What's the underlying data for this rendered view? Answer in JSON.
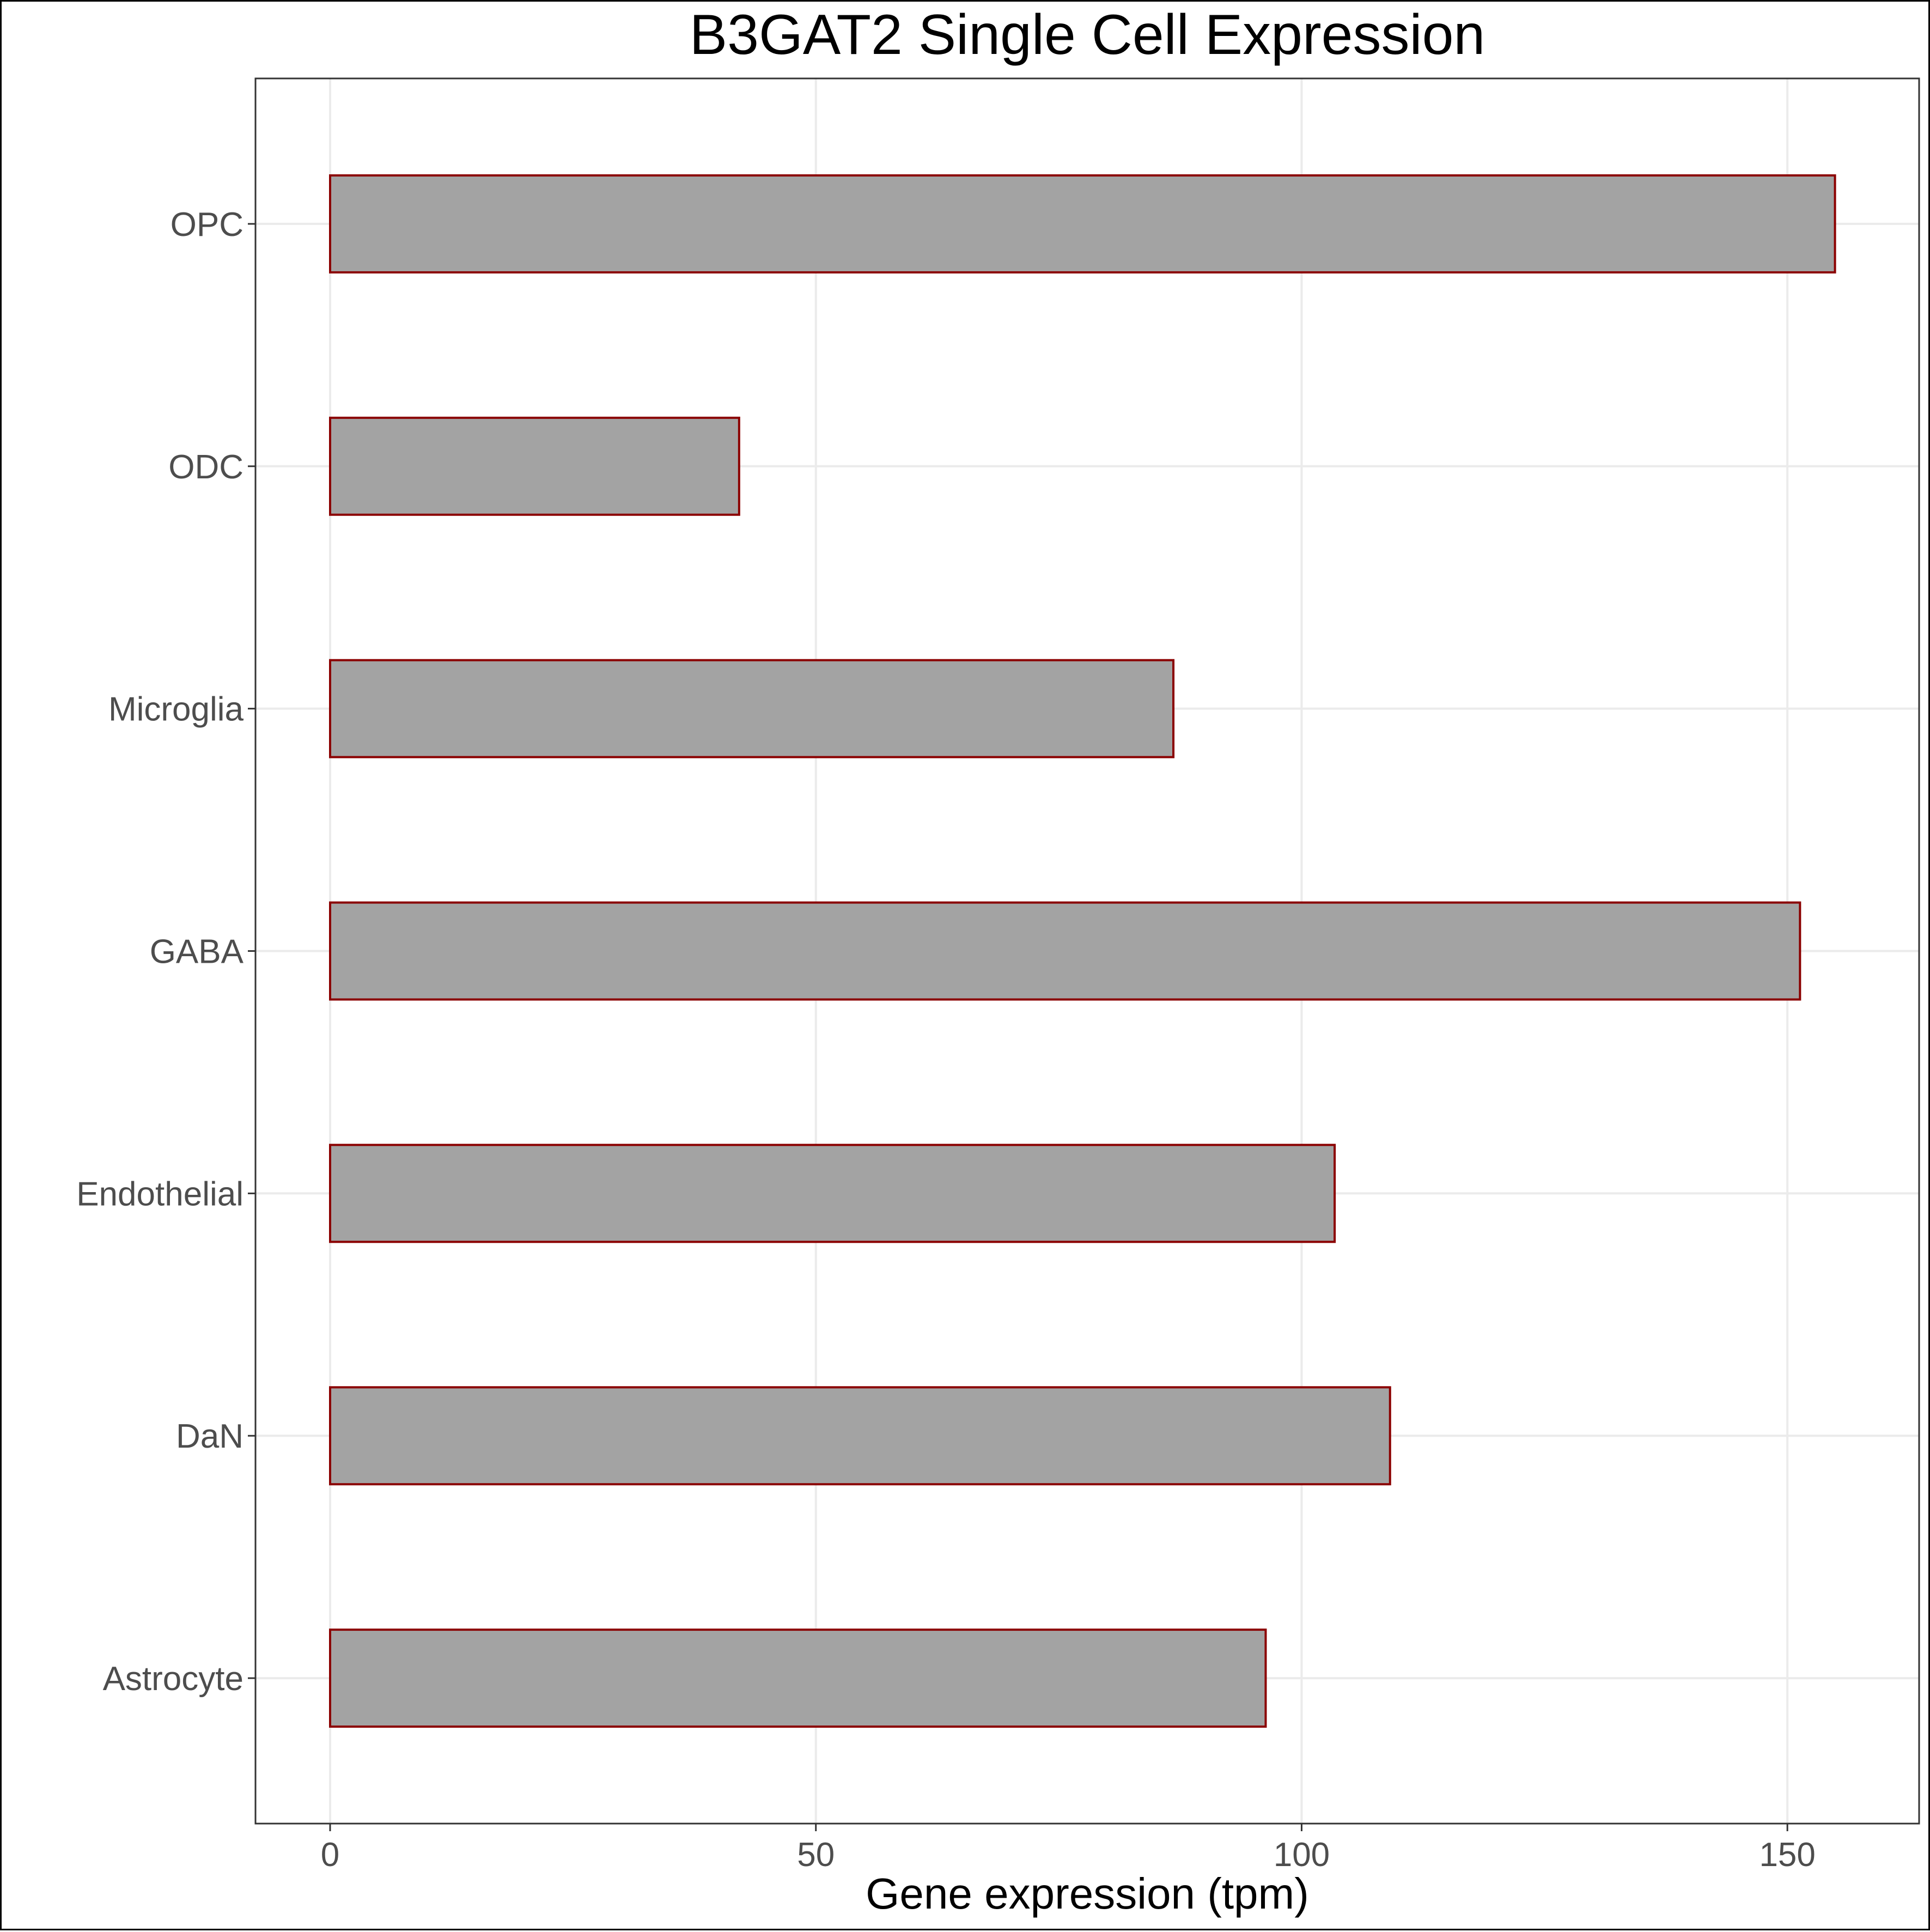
{
  "chart_data": {
    "type": "bar",
    "orientation": "horizontal",
    "title": "B3GAT2 Single Cell Expression",
    "xlabel": "Gene expression (tpm)",
    "ylabel": "",
    "categories": [
      "Astrocyte",
      "DaN",
      "Endothelial",
      "GABA",
      "Microglia",
      "ODC",
      "OPC"
    ],
    "values": [
      96.3,
      109.1,
      103.4,
      151.3,
      86.8,
      42.1,
      154.9
    ],
    "xlim": [
      -7.7,
      162.6
    ],
    "xticks": [
      0,
      50,
      100,
      150
    ],
    "xtick_labels": [
      "0",
      "50",
      "100",
      "150"
    ],
    "grid": true,
    "legend": "none",
    "colors": {
      "bar_fill": "#a3a3a3",
      "bar_outline": "#8b0000",
      "gridline": "#ebebeb",
      "panel_border": "#333333",
      "tick_text": "#4d4d4d"
    }
  }
}
